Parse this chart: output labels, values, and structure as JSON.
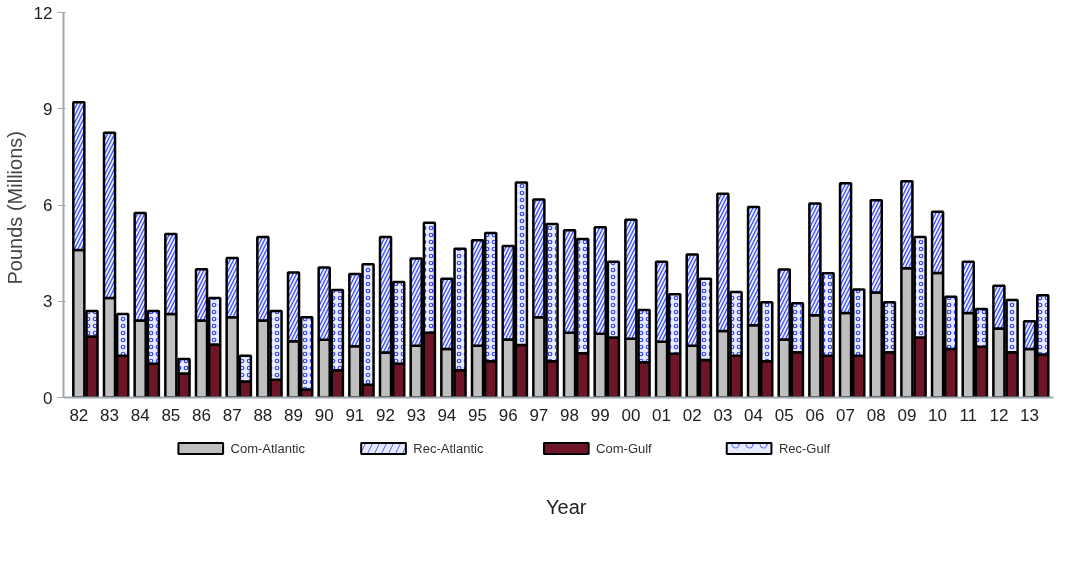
{
  "chart_data": {
    "type": "bar",
    "stacked": true,
    "xlabel": "Year",
    "ylabel": "Pounds  (Millions)",
    "categories": [
      "82",
      null,
      "83",
      null,
      "84",
      null,
      "85",
      null,
      "86",
      null,
      "87",
      null,
      "88",
      null,
      "89",
      null,
      "90",
      null,
      "91",
      null,
      "92",
      null,
      "93",
      null,
      "94",
      null,
      "95",
      null,
      "96",
      null,
      "97",
      null,
      "98",
      null,
      "99",
      null,
      "00",
      null,
      "01",
      null,
      "02",
      null,
      "03",
      null,
      "04",
      null,
      "05",
      null,
      "06",
      null,
      "07",
      null,
      "08",
      null,
      "09",
      null,
      "10",
      null,
      "11",
      null,
      "12",
      null,
      "13",
      null
    ],
    "ylim": [
      0,
      12
    ],
    "yticks": [
      0,
      3,
      6,
      9,
      12
    ],
    "grid": false,
    "legend": "bottom",
    "series": [
      {
        "name": "Com-Atlantic",
        "color": "#bfbfbf",
        "values": [
          4.6,
          null,
          3.1,
          null,
          2.4,
          null,
          2.6,
          null,
          2.4,
          null,
          2.5,
          null,
          2.4,
          null,
          1.75,
          null,
          1.8,
          null,
          1.6,
          null,
          1.4,
          null,
          1.61,
          null,
          1.51,
          null,
          1.61,
          null,
          1.81,
          null,
          2.5,
          null,
          2.02,
          null,
          1.99,
          null,
          1.83,
          null,
          1.74,
          null,
          1.61,
          null,
          2.07,
          null,
          2.25,
          null,
          1.81,
          null,
          2.56,
          null,
          2.63,
          null,
          3.27,
          null,
          4.03,
          null,
          3.88,
          null,
          2.63,
          null,
          2.15,
          null,
          1.51,
          null
        ]
      },
      {
        "name": "Rec-Atlantic",
        "color": "#e8ebff",
        "values": [
          4.6,
          null,
          5.15,
          null,
          3.35,
          null,
          2.5,
          null,
          1.6,
          null,
          1.85,
          null,
          2.6,
          null,
          2.15,
          null,
          2.25,
          null,
          2.25,
          null,
          3.6,
          null,
          2.72,
          null,
          2.19,
          null,
          3.29,
          null,
          2.91,
          null,
          3.67,
          null,
          3.19,
          null,
          3.32,
          null,
          3.71,
          null,
          2.49,
          null,
          2.85,
          null,
          4.28,
          null,
          3.69,
          null,
          2.18,
          null,
          3.49,
          null,
          4.05,
          null,
          2.88,
          null,
          2.71,
          null,
          1.91,
          null,
          1.6,
          null,
          1.33,
          null,
          0.87,
          null
        ]
      },
      {
        "name": "Com-Gulf",
        "color": "#6e1628",
        "values": [
          null,
          1.9,
          null,
          1.3,
          null,
          1.05,
          null,
          0.75,
          null,
          1.65,
          null,
          0.5,
          null,
          0.55,
          null,
          0.25,
          null,
          0.85,
          null,
          0.4,
          null,
          1.05,
          null,
          2.02,
          null,
          0.85,
          null,
          1.13,
          null,
          1.64,
          null,
          1.13,
          null,
          1.38,
          null,
          1.87,
          null,
          1.1,
          null,
          1.36,
          null,
          1.17,
          null,
          1.3,
          null,
          1.13,
          null,
          1.41,
          null,
          1.3,
          null,
          1.3,
          null,
          1.41,
          null,
          1.87,
          null,
          1.51,
          null,
          1.58,
          null,
          1.41,
          null,
          1.34
        ]
      },
      {
        "name": "Rec-Gulf",
        "color": "#e8ebff",
        "values": [
          null,
          0.8,
          null,
          1.3,
          null,
          1.65,
          null,
          0.45,
          null,
          1.45,
          null,
          0.8,
          null,
          2.15,
          null,
          2.25,
          null,
          2.5,
          null,
          3.75,
          null,
          2.55,
          null,
          3.43,
          null,
          3.79,
          null,
          4.0,
          null,
          5.06,
          null,
          4.28,
          null,
          3.56,
          null,
          2.36,
          null,
          1.63,
          null,
          1.86,
          null,
          2.53,
          null,
          1.99,
          null,
          1.84,
          null,
          1.53,
          null,
          2.57,
          null,
          2.07,
          null,
          1.56,
          null,
          3.13,
          null,
          1.63,
          null,
          1.18,
          null,
          1.63,
          null,
          1.85
        ]
      }
    ]
  }
}
